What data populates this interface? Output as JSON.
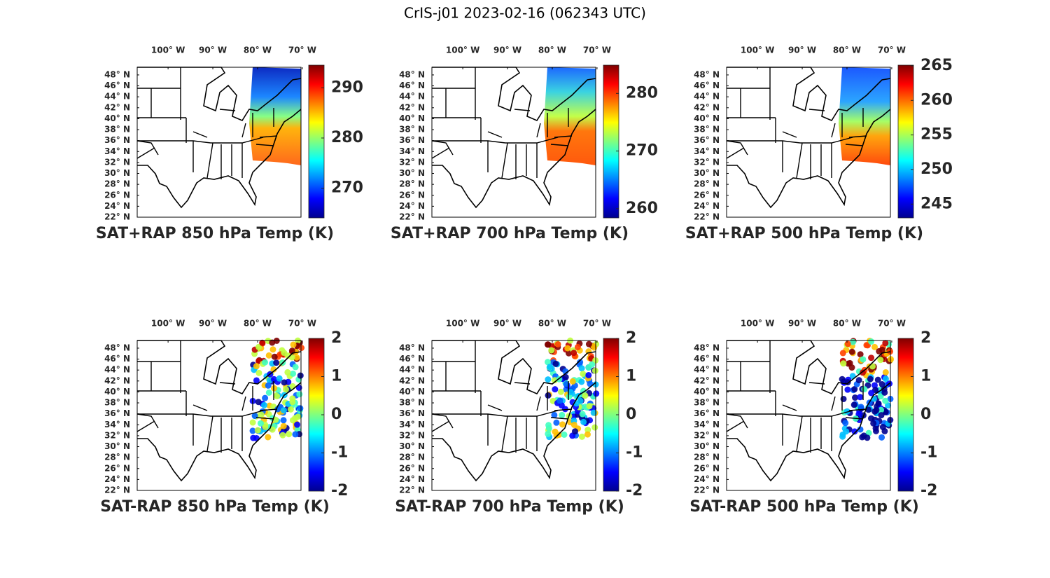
{
  "title": "CrIS-j01 2023-02-16 (062343 UTC)",
  "panels": [
    {
      "title": "SAT+RAP 850 hPa Temp (K)",
      "xlim": [
        -106.9,
        -70.3
      ],
      "ylim": [
        22,
        49.4
      ],
      "xticks": [
        {
          "value": -100,
          "label": "100° W"
        },
        {
          "value": -90,
          "label": "90° W"
        },
        {
          "value": -80,
          "label": "80° W"
        },
        {
          "value": -70,
          "label": "70° W"
        }
      ],
      "yticks": [
        {
          "value": 48,
          "label": "48° N"
        },
        {
          "value": 46,
          "label": "46° N"
        },
        {
          "value": 44,
          "label": "44° N"
        },
        {
          "value": 42,
          "label": "42° N"
        },
        {
          "value": 40,
          "label": "40° N"
        },
        {
          "value": 38,
          "label": "38° N"
        },
        {
          "value": 36,
          "label": "36° N"
        },
        {
          "value": 34,
          "label": "34° N"
        },
        {
          "value": 32,
          "label": "32° N"
        },
        {
          "value": 30,
          "label": "30° N"
        },
        {
          "value": 28,
          "label": "28° N"
        },
        {
          "value": 26,
          "label": "26° N"
        },
        {
          "value": 24,
          "label": "24° N"
        },
        {
          "value": 22,
          "label": "22° N"
        }
      ],
      "clim": [
        264.1,
        294.5
      ],
      "cticks": [
        290,
        280,
        270
      ]
    },
    {
      "title": "SAT+RAP 700 hPa Temp (K)",
      "xlim": [
        -106.9,
        -70.3
      ],
      "ylim": [
        22,
        49.4
      ],
      "xticks": [
        {
          "value": -100,
          "label": "100° W"
        },
        {
          "value": -90,
          "label": "90° W"
        },
        {
          "value": -80,
          "label": "80° W"
        },
        {
          "value": -70,
          "label": "70° W"
        }
      ],
      "yticks": [
        {
          "value": 48,
          "label": "48° N"
        },
        {
          "value": 46,
          "label": "46° N"
        },
        {
          "value": 44,
          "label": "44° N"
        },
        {
          "value": 42,
          "label": "42° N"
        },
        {
          "value": 40,
          "label": "40° N"
        },
        {
          "value": 38,
          "label": "38° N"
        },
        {
          "value": 36,
          "label": "36° N"
        },
        {
          "value": 34,
          "label": "34° N"
        },
        {
          "value": 32,
          "label": "32° N"
        },
        {
          "value": 30,
          "label": "30° N"
        },
        {
          "value": 28,
          "label": "28° N"
        },
        {
          "value": 26,
          "label": "26° N"
        },
        {
          "value": 24,
          "label": "24° N"
        },
        {
          "value": 22,
          "label": "22° N"
        }
      ],
      "clim": [
        258.4,
        284.9
      ],
      "cticks": [
        280,
        270,
        260
      ]
    },
    {
      "title": "SAT+RAP 500 hPa Temp (K)",
      "xlim": [
        -106.9,
        -70.3
      ],
      "ylim": [
        22,
        49.4
      ],
      "xticks": [
        {
          "value": -100,
          "label": "100° W"
        },
        {
          "value": -90,
          "label": "90° W"
        },
        {
          "value": -80,
          "label": "80° W"
        },
        {
          "value": -70,
          "label": "70° W"
        }
      ],
      "yticks": [
        {
          "value": 48,
          "label": "48° N"
        },
        {
          "value": 46,
          "label": "46° N"
        },
        {
          "value": 44,
          "label": "44° N"
        },
        {
          "value": 42,
          "label": "42° N"
        },
        {
          "value": 40,
          "label": "40° N"
        },
        {
          "value": 38,
          "label": "38° N"
        },
        {
          "value": 36,
          "label": "36° N"
        },
        {
          "value": 34,
          "label": "34° N"
        },
        {
          "value": 32,
          "label": "32° N"
        },
        {
          "value": 30,
          "label": "30° N"
        },
        {
          "value": 28,
          "label": "28° N"
        },
        {
          "value": 26,
          "label": "26° N"
        },
        {
          "value": 24,
          "label": "24° N"
        },
        {
          "value": 22,
          "label": "22° N"
        }
      ],
      "clim": [
        243,
        265.1
      ],
      "cticks": [
        265,
        260,
        255,
        250,
        245
      ]
    },
    {
      "title": "SAT-RAP 850 hPa Temp (K)",
      "xlim": [
        -106.9,
        -70.3
      ],
      "ylim": [
        22,
        49.4
      ],
      "xticks": [
        {
          "value": -100,
          "label": "100° W"
        },
        {
          "value": -90,
          "label": "90° W"
        },
        {
          "value": -80,
          "label": "80° W"
        },
        {
          "value": -70,
          "label": "70° W"
        }
      ],
      "yticks": [
        {
          "value": 48,
          "label": "48° N"
        },
        {
          "value": 46,
          "label": "46° N"
        },
        {
          "value": 44,
          "label": "44° N"
        },
        {
          "value": 42,
          "label": "42° N"
        },
        {
          "value": 40,
          "label": "40° N"
        },
        {
          "value": 38,
          "label": "38° N"
        },
        {
          "value": 36,
          "label": "36° N"
        },
        {
          "value": 34,
          "label": "34° N"
        },
        {
          "value": 32,
          "label": "32° N"
        },
        {
          "value": 30,
          "label": "30° N"
        },
        {
          "value": 28,
          "label": "28° N"
        },
        {
          "value": 26,
          "label": "26° N"
        },
        {
          "value": 24,
          "label": "24° N"
        },
        {
          "value": 22,
          "label": "22° N"
        }
      ],
      "clim": [
        -2,
        2
      ],
      "cticks": [
        2,
        1,
        0,
        -1,
        -2
      ]
    },
    {
      "title": "SAT-RAP 700 hPa Temp (K)",
      "xlim": [
        -106.9,
        -70.3
      ],
      "ylim": [
        22,
        49.4
      ],
      "xticks": [
        {
          "value": -100,
          "label": "100° W"
        },
        {
          "value": -90,
          "label": "90° W"
        },
        {
          "value": -80,
          "label": "80° W"
        },
        {
          "value": -70,
          "label": "70° W"
        }
      ],
      "yticks": [
        {
          "value": 48,
          "label": "48° N"
        },
        {
          "value": 46,
          "label": "46° N"
        },
        {
          "value": 44,
          "label": "44° N"
        },
        {
          "value": 42,
          "label": "42° N"
        },
        {
          "value": 40,
          "label": "40° N"
        },
        {
          "value": 38,
          "label": "38° N"
        },
        {
          "value": 36,
          "label": "36° N"
        },
        {
          "value": 34,
          "label": "34° N"
        },
        {
          "value": 32,
          "label": "32° N"
        },
        {
          "value": 30,
          "label": "30° N"
        },
        {
          "value": 28,
          "label": "28° N"
        },
        {
          "value": 26,
          "label": "26° N"
        },
        {
          "value": 24,
          "label": "24° N"
        },
        {
          "value": 22,
          "label": "22° N"
        }
      ],
      "clim": [
        -2,
        2
      ],
      "cticks": [
        2,
        1,
        0,
        -1,
        -2
      ]
    },
    {
      "title": "SAT-RAP 500 hPa Temp (K)",
      "xlim": [
        -106.9,
        -70.3
      ],
      "ylim": [
        22,
        49.4
      ],
      "xticks": [
        {
          "value": -100,
          "label": "100° W"
        },
        {
          "value": -90,
          "label": "90° W"
        },
        {
          "value": -80,
          "label": "80° W"
        },
        {
          "value": -70,
          "label": "70° W"
        }
      ],
      "yticks": [
        {
          "value": 48,
          "label": "48° N"
        },
        {
          "value": 46,
          "label": "46° N"
        },
        {
          "value": 44,
          "label": "44° N"
        },
        {
          "value": 42,
          "label": "42° N"
        },
        {
          "value": 40,
          "label": "40° N"
        },
        {
          "value": 38,
          "label": "38° N"
        },
        {
          "value": 36,
          "label": "36° N"
        },
        {
          "value": 34,
          "label": "34° N"
        },
        {
          "value": 32,
          "label": "32° N"
        },
        {
          "value": 30,
          "label": "30° N"
        },
        {
          "value": 28,
          "label": "28° N"
        },
        {
          "value": 26,
          "label": "26° N"
        },
        {
          "value": 24,
          "label": "24° N"
        },
        {
          "value": 22,
          "label": "22° N"
        }
      ],
      "clim": [
        -2,
        2
      ],
      "cticks": [
        2,
        1,
        0,
        -1,
        -2
      ]
    }
  ]
}
